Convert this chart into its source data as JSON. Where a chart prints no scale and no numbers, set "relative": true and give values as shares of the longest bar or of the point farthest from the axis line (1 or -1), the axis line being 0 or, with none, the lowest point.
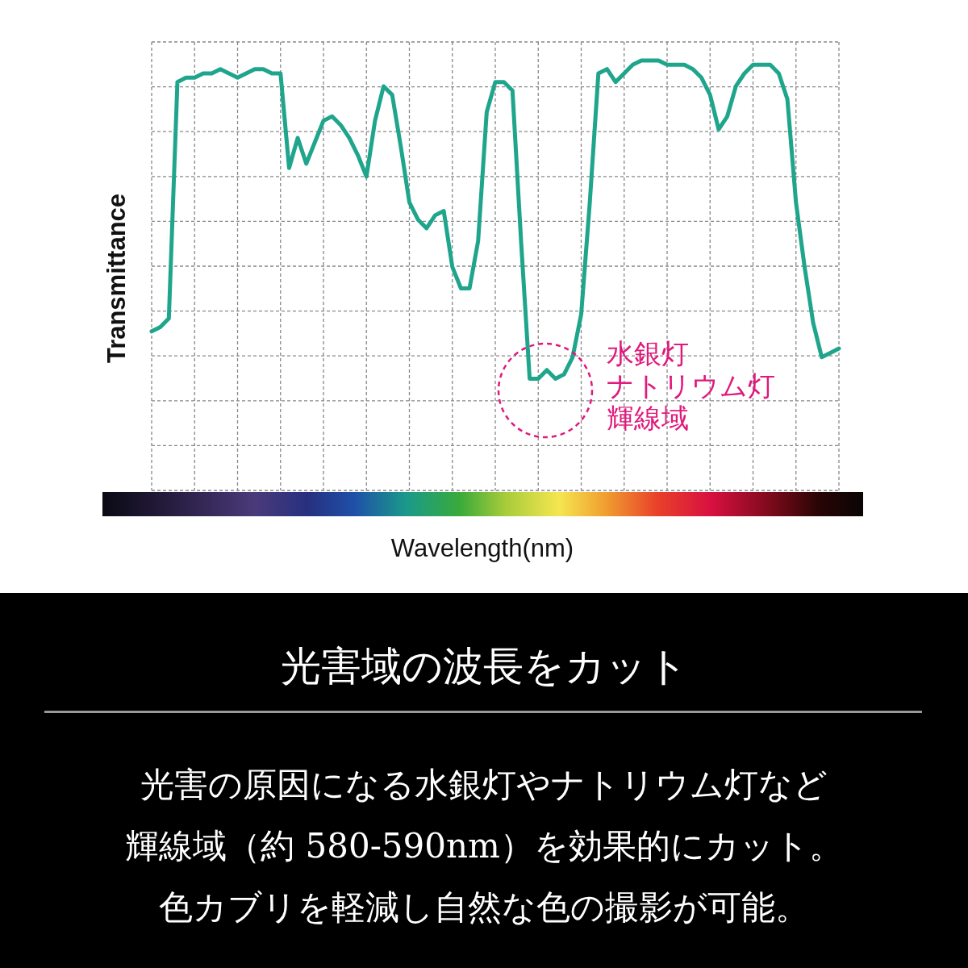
{
  "chart_data": {
    "type": "line",
    "relative": true,
    "grid": true,
    "color": "#1fa58c",
    "title": "光害域の波長をカット",
    "xlabel": "Wavelength(nm)",
    "ylabel": "Transmittance",
    "categories": [
      null,
      null,
      null,
      null,
      null,
      null,
      null,
      null,
      null,
      null,
      null,
      null,
      null,
      null,
      null,
      null,
      null,
      null,
      null,
      null,
      null,
      null,
      null,
      null,
      null,
      null,
      null,
      null,
      null,
      null,
      null,
      null,
      null,
      null,
      null,
      null,
      null,
      null,
      null,
      null,
      null,
      null,
      null,
      null,
      null,
      null,
      null,
      null,
      null,
      null,
      null,
      null,
      null,
      null,
      null,
      null,
      null,
      null,
      null,
      null,
      null,
      null,
      null,
      null,
      null,
      null,
      null,
      null,
      null,
      null,
      null,
      null,
      null,
      null,
      null,
      null,
      null,
      null,
      null,
      null,
      null
    ],
    "values": [
      0.37,
      0.38,
      0.4,
      0.95,
      0.96,
      0.96,
      0.97,
      0.97,
      0.98,
      0.97,
      0.96,
      0.97,
      0.98,
      0.98,
      0.97,
      0.97,
      0.75,
      0.82,
      0.76,
      0.81,
      0.86,
      0.87,
      0.85,
      0.82,
      0.78,
      0.73,
      0.86,
      0.94,
      0.92,
      0.8,
      0.67,
      0.63,
      0.61,
      0.64,
      0.65,
      0.52,
      0.47,
      0.47,
      0.58,
      0.88,
      0.95,
      0.95,
      0.93,
      0.58,
      0.26,
      0.26,
      0.28,
      0.26,
      0.27,
      0.31,
      0.41,
      0.67,
      0.97,
      0.98,
      0.95,
      0.97,
      0.99,
      1.0,
      1.0,
      1.0,
      0.99,
      0.99,
      0.99,
      0.98,
      0.96,
      0.92,
      0.84,
      0.87,
      0.94,
      0.97,
      0.99,
      0.99,
      0.99,
      0.97,
      0.91,
      0.67,
      0.52,
      0.39,
      0.31,
      0.32,
      0.33
    ],
    "annotations": [
      "水銀灯",
      "ナトリウム灯",
      "輝線域",
      "光害の原因になる水銀灯やナトリウム灯など",
      "輝線域（約 580-590nm）を効果的にカット。",
      "色カブリを軽減し自然な色の撮影が可能。"
    ]
  }
}
